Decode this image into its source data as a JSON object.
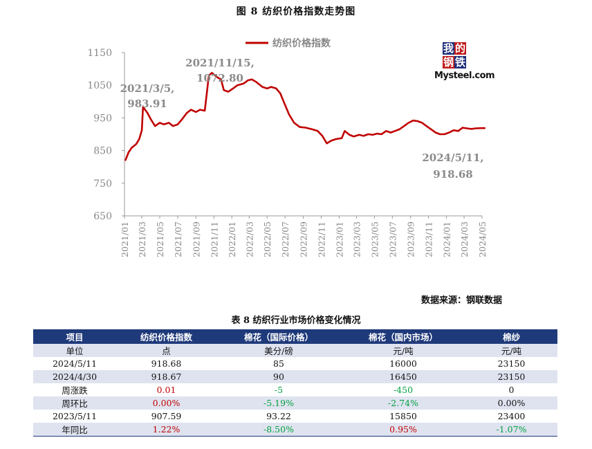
{
  "figure_title": "图 8   纺织价格指数走势图",
  "source": "数据来源：钢联数据",
  "logo": {
    "cn": [
      "我",
      "的",
      "钢",
      "铁"
    ],
    "en": "Mysteel.com"
  },
  "chart_data": {
    "type": "line",
    "title": "图 8   纺织价格指数走势图",
    "legend": [
      "纺织价格指数"
    ],
    "legend_position": "top-center",
    "grid": false,
    "ylim": [
      650,
      1150
    ],
    "yticks": [
      "1150",
      "1050",
      "950",
      "850",
      "750",
      "650"
    ],
    "ytick_values": [
      1150,
      1050,
      950,
      850,
      750,
      650
    ],
    "xticks": [
      "2021/01",
      "2021/03",
      "2021/05",
      "2021/07",
      "2021/09",
      "2021/11",
      "2022/01",
      "2022/03",
      "2022/05",
      "2022/07",
      "2022/09",
      "2022/11",
      "2023/01",
      "2023/03",
      "2023/05",
      "2023/07",
      "2023/09",
      "2023/11",
      "2024/01",
      "2024/03",
      "2024/05"
    ],
    "xlim": [
      "2021/01",
      "2024/05"
    ],
    "series": [
      {
        "name": "纺织价格指数",
        "color": "#c00000",
        "points": [
          [
            "2021-01-04",
            820
          ],
          [
            "2021-01-15",
            845
          ],
          [
            "2021-01-25",
            858
          ],
          [
            "2021-02-10",
            870
          ],
          [
            "2021-02-20",
            885
          ],
          [
            "2021-03-01",
            912
          ],
          [
            "2021-03-05",
            983.91
          ],
          [
            "2021-03-12",
            975
          ],
          [
            "2021-03-20",
            965
          ],
          [
            "2021-04-01",
            945
          ],
          [
            "2021-04-15",
            925
          ],
          [
            "2021-05-01",
            935
          ],
          [
            "2021-05-15",
            930
          ],
          [
            "2021-06-01",
            935
          ],
          [
            "2021-06-15",
            925
          ],
          [
            "2021-07-01",
            930
          ],
          [
            "2021-07-15",
            945
          ],
          [
            "2021-08-01",
            965
          ],
          [
            "2021-08-15",
            975
          ],
          [
            "2021-09-01",
            968
          ],
          [
            "2021-09-15",
            975
          ],
          [
            "2021-10-01",
            972
          ],
          [
            "2021-10-15",
            1080
          ],
          [
            "2021-10-25",
            1088
          ],
          [
            "2021-11-15",
            1072.8
          ],
          [
            "2021-11-25",
            1068
          ],
          [
            "2021-12-05",
            1035
          ],
          [
            "2021-12-20",
            1030
          ],
          [
            "2022-01-05",
            1040
          ],
          [
            "2022-01-20",
            1050
          ],
          [
            "2022-02-10",
            1055
          ],
          [
            "2022-02-25",
            1065
          ],
          [
            "2022-03-10",
            1068
          ],
          [
            "2022-03-25",
            1060
          ],
          [
            "2022-04-15",
            1045
          ],
          [
            "2022-05-01",
            1040
          ],
          [
            "2022-05-15",
            1045
          ],
          [
            "2022-06-01",
            1040
          ],
          [
            "2022-06-15",
            1025
          ],
          [
            "2022-07-01",
            990
          ],
          [
            "2022-07-15",
            960
          ],
          [
            "2022-08-01",
            935
          ],
          [
            "2022-08-20",
            922
          ],
          [
            "2022-09-10",
            920
          ],
          [
            "2022-10-01",
            915
          ],
          [
            "2022-10-20",
            910
          ],
          [
            "2022-11-05",
            895
          ],
          [
            "2022-11-20",
            872
          ],
          [
            "2022-12-05",
            880
          ],
          [
            "2022-12-20",
            885
          ],
          [
            "2023-01-10",
            888
          ],
          [
            "2023-01-20",
            910
          ],
          [
            "2023-02-05",
            898
          ],
          [
            "2023-02-20",
            893
          ],
          [
            "2023-03-10",
            898
          ],
          [
            "2023-03-25",
            895
          ],
          [
            "2023-04-10",
            900
          ],
          [
            "2023-04-25",
            898
          ],
          [
            "2023-05-10",
            902
          ],
          [
            "2023-05-25",
            900
          ],
          [
            "2023-06-10",
            910
          ],
          [
            "2023-06-25",
            905
          ],
          [
            "2023-07-10",
            910
          ],
          [
            "2023-07-25",
            915
          ],
          [
            "2023-08-10",
            925
          ],
          [
            "2023-08-25",
            935
          ],
          [
            "2023-09-10",
            942
          ],
          [
            "2023-09-25",
            940
          ],
          [
            "2023-10-10",
            935
          ],
          [
            "2023-10-25",
            925
          ],
          [
            "2023-11-10",
            915
          ],
          [
            "2023-11-25",
            905
          ],
          [
            "2023-12-10",
            900
          ],
          [
            "2023-12-25",
            900
          ],
          [
            "2024-01-10",
            905
          ],
          [
            "2024-01-25",
            912
          ],
          [
            "2024-02-10",
            910
          ],
          [
            "2024-02-25",
            920
          ],
          [
            "2024-03-10",
            918
          ],
          [
            "2024-03-25",
            916
          ],
          [
            "2024-04-10",
            918
          ],
          [
            "2024-04-30",
            918.67
          ],
          [
            "2024-05-11",
            918.68
          ]
        ]
      }
    ],
    "annotations": [
      {
        "lines": [
          "2021/3/5,",
          "983.91"
        ],
        "date": "2021-03-05",
        "value": 983.91
      },
      {
        "lines": [
          "2021/11/15,",
          "1072.80"
        ],
        "date": "2021-11-15",
        "value": 1072.8
      },
      {
        "lines": [
          "2024/5/11,",
          "918.68"
        ],
        "date": "2024-05-11",
        "value": 918.68
      }
    ]
  },
  "table": {
    "title": "表 8 纺织行业市场价格变化情况",
    "headers": [
      "项目",
      "纺织价格指数",
      "棉花（国际价格）",
      "棉花（国内市场）",
      "棉纱"
    ],
    "rows": [
      {
        "cells": [
          "单位",
          "点",
          "美分/磅",
          "元/吨",
          "元/吨"
        ],
        "shade": true
      },
      {
        "cells": [
          "2024/5/11",
          "918.68",
          "85",
          "16000",
          "23150"
        ],
        "shade": false
      },
      {
        "cells": [
          "2024/4/30",
          "918.67",
          "90",
          "16450",
          "23150"
        ],
        "shade": true
      },
      {
        "cells": [
          "周涨跌",
          "0.01",
          "-5",
          "-450",
          "0"
        ],
        "shade": false,
        "colors": [
          "",
          "pos",
          "neg",
          "neg",
          ""
        ]
      },
      {
        "cells": [
          "周环比",
          "0.00%",
          "-5.19%",
          "-2.74%",
          "0.00%"
        ],
        "shade": true,
        "colors": [
          "",
          "pos",
          "neg",
          "neg",
          ""
        ]
      },
      {
        "cells": [
          "2023/5/11",
          "907.59",
          "93.22",
          "15850",
          "23400"
        ],
        "shade": false
      },
      {
        "cells": [
          "年同比",
          "1.22%",
          "-8.50%",
          "0.95%",
          "-1.07%"
        ],
        "shade": true,
        "colors": [
          "",
          "pos",
          "neg",
          "pos",
          "neg"
        ]
      }
    ]
  }
}
